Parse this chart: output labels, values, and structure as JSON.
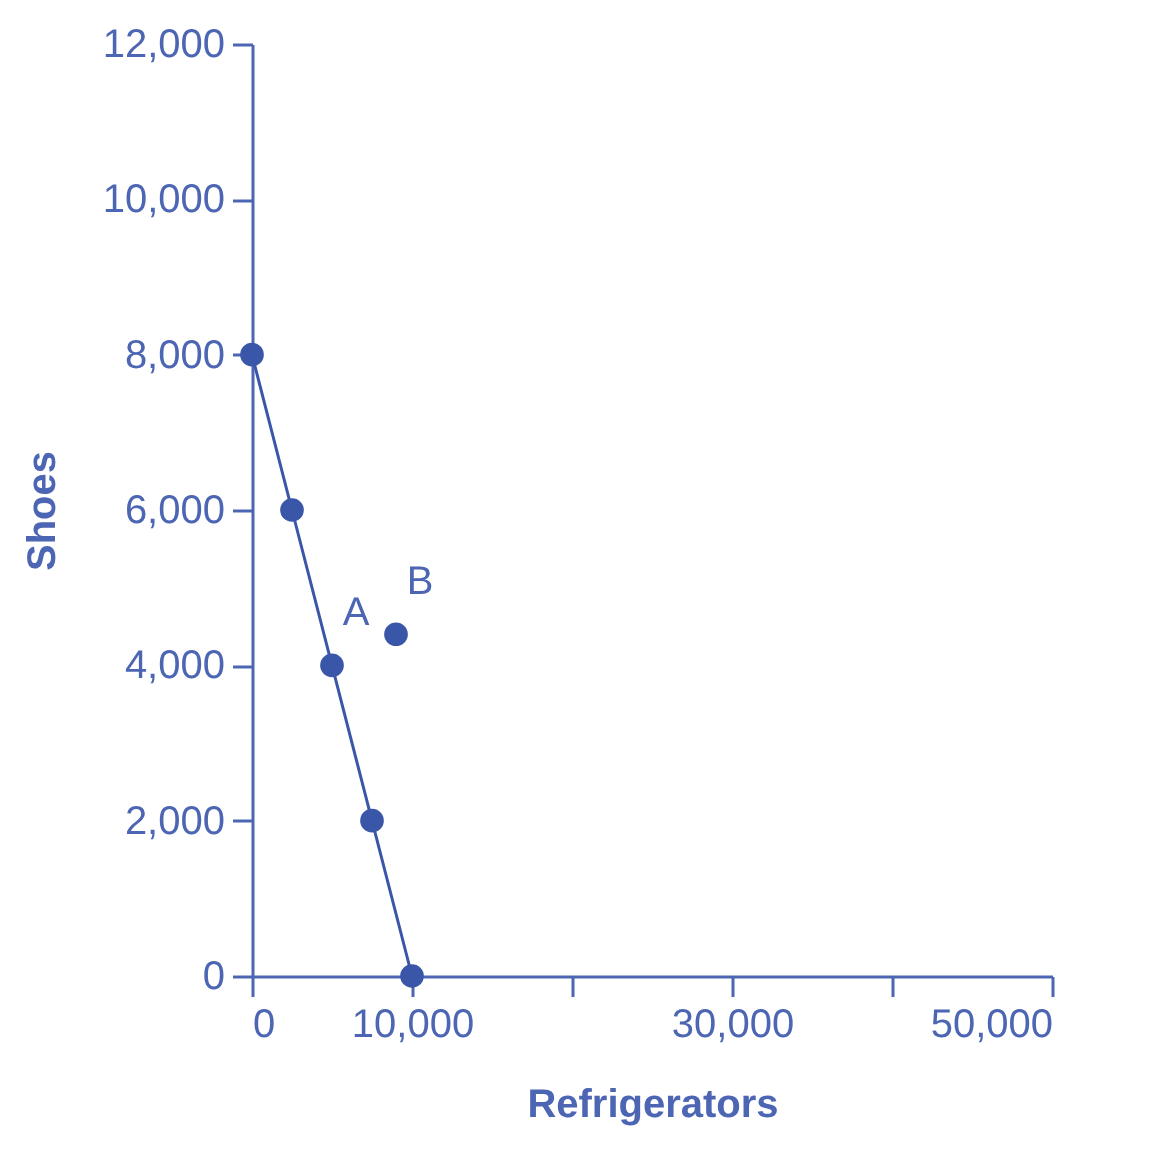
{
  "chart_data": {
    "type": "line",
    "xlabel": "Refrigerators",
    "ylabel": "Shoes",
    "series": [
      {
        "type": "line",
        "color": "#3a56a8",
        "marker": "circle",
        "x": [
          0,
          2500,
          5000,
          7500,
          10000
        ],
        "values": [
          8000,
          6000,
          4000,
          2000,
          0
        ]
      },
      {
        "type": "scatter",
        "color": "#3a56a8",
        "marker": "circle",
        "x": [
          9000
        ],
        "values": [
          4400
        ]
      }
    ],
    "annotations": [
      {
        "text": "A",
        "x": 5000,
        "y": 4000
      },
      {
        "text": "B",
        "x": 9000,
        "y": 4400
      }
    ],
    "xlim": [
      0,
      50000
    ],
    "ylim": [
      0,
      12000
    ],
    "xticks": [
      0,
      {
        "value": 10000,
        "label": "10,000"
      },
      {
        "value": 20000,
        "label": null
      },
      {
        "value": 30000,
        "label": "30,000"
      },
      {
        "value": 40000,
        "label": null
      },
      {
        "value": 50000,
        "label": "50,000"
      }
    ],
    "yticks": [
      0,
      {
        "value": 2000,
        "label": "2,000"
      },
      {
        "value": 4000,
        "label": "4,000"
      },
      {
        "value": 6000,
        "label": "6,000"
      },
      {
        "value": 8000,
        "label": "8,000"
      },
      {
        "value": 10000,
        "label": "10,000"
      },
      {
        "value": 12000,
        "label": "12,000"
      }
    ],
    "grid": false
  }
}
